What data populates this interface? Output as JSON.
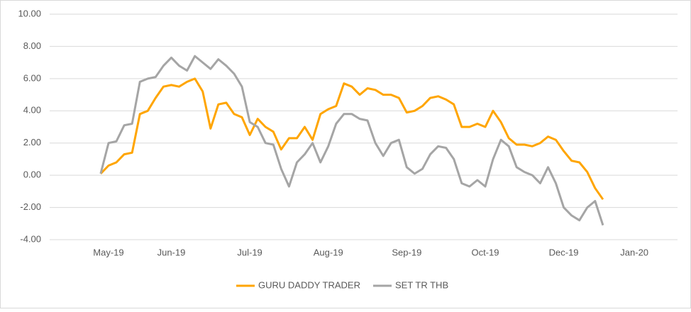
{
  "chart_data": {
    "type": "line",
    "categories": [
      null,
      null,
      null,
      null,
      null,
      null,
      null,
      "May-19",
      null,
      null,
      null,
      null,
      null,
      null,
      null,
      "Jun-19",
      null,
      null,
      null,
      null,
      null,
      null,
      null,
      null,
      null,
      "Jul-19",
      null,
      null,
      null,
      null,
      null,
      null,
      null,
      null,
      null,
      "Aug-19",
      null,
      null,
      null,
      null,
      null,
      null,
      null,
      null,
      null,
      "Sep-19",
      null,
      null,
      null,
      null,
      null,
      null,
      null,
      null,
      null,
      "Oct-19",
      null,
      null,
      null,
      null,
      null,
      null,
      null,
      null,
      null,
      "Dec-19",
      null,
      null,
      null,
      null,
      null,
      null,
      null,
      null,
      "Jan-20",
      null,
      null,
      null,
      null,
      null
    ],
    "series": [
      {
        "name": "GURU DADDY TRADER",
        "color": "#ffa500",
        "values": [
          null,
          null,
          null,
          null,
          null,
          null,
          0.1,
          0.6,
          0.8,
          1.3,
          1.4,
          3.8,
          4.0,
          4.8,
          5.5,
          5.6,
          5.5,
          5.8,
          6.0,
          5.2,
          2.9,
          4.4,
          4.5,
          3.8,
          3.6,
          2.5,
          3.5,
          3.0,
          2.7,
          1.6,
          2.3,
          2.3,
          3.0,
          2.2,
          3.8,
          4.1,
          4.3,
          5.7,
          5.5,
          5.0,
          5.4,
          5.3,
          5.0,
          5.0,
          4.8,
          3.9,
          4.0,
          4.3,
          4.8,
          4.9,
          4.7,
          4.4,
          3.0,
          3.0,
          3.2,
          3.0,
          4.0,
          3.3,
          2.3,
          1.9,
          1.9,
          1.8,
          2.0,
          2.4,
          2.2,
          1.5,
          0.9,
          0.8,
          0.2,
          -0.8,
          -1.5,
          null,
          null,
          null,
          null,
          null,
          null,
          null,
          null,
          null
        ]
      },
      {
        "name": "SET TR THB",
        "color": "#a5a5a5",
        "values": [
          null,
          null,
          null,
          null,
          null,
          null,
          0.1,
          2.0,
          2.1,
          3.1,
          3.2,
          5.8,
          6.0,
          6.1,
          6.8,
          7.3,
          6.8,
          6.5,
          7.4,
          7.0,
          6.6,
          7.2,
          6.8,
          6.3,
          5.5,
          3.3,
          3.0,
          2.0,
          1.9,
          0.4,
          -0.7,
          0.8,
          1.3,
          2.0,
          0.8,
          1.8,
          3.2,
          3.8,
          3.8,
          3.5,
          3.4,
          2.0,
          1.2,
          2.0,
          2.2,
          0.5,
          0.1,
          0.4,
          1.3,
          1.8,
          1.7,
          1.0,
          -0.5,
          -0.7,
          -0.3,
          -0.7,
          1.0,
          2.2,
          1.8,
          0.5,
          0.2,
          0.0,
          -0.5,
          0.5,
          -0.5,
          -2.0,
          -2.5,
          -2.8,
          -2.0,
          -1.6,
          -3.1,
          null,
          null,
          null,
          null,
          null,
          null,
          null,
          null,
          null
        ]
      }
    ],
    "ylim": [
      -4,
      10
    ],
    "yticks": [
      {
        "value": -4,
        "label": "-4.00"
      },
      {
        "value": -2,
        "label": "-2.00"
      },
      {
        "value": 0,
        "label": "0.00"
      },
      {
        "value": 2,
        "label": "2.00"
      },
      {
        "value": 4,
        "label": "4.00"
      },
      {
        "value": 6,
        "label": "6.00"
      },
      {
        "value": 8,
        "label": "8.00"
      },
      {
        "value": 10,
        "label": "10.00"
      }
    ],
    "grid": true,
    "legend": "bottom"
  }
}
